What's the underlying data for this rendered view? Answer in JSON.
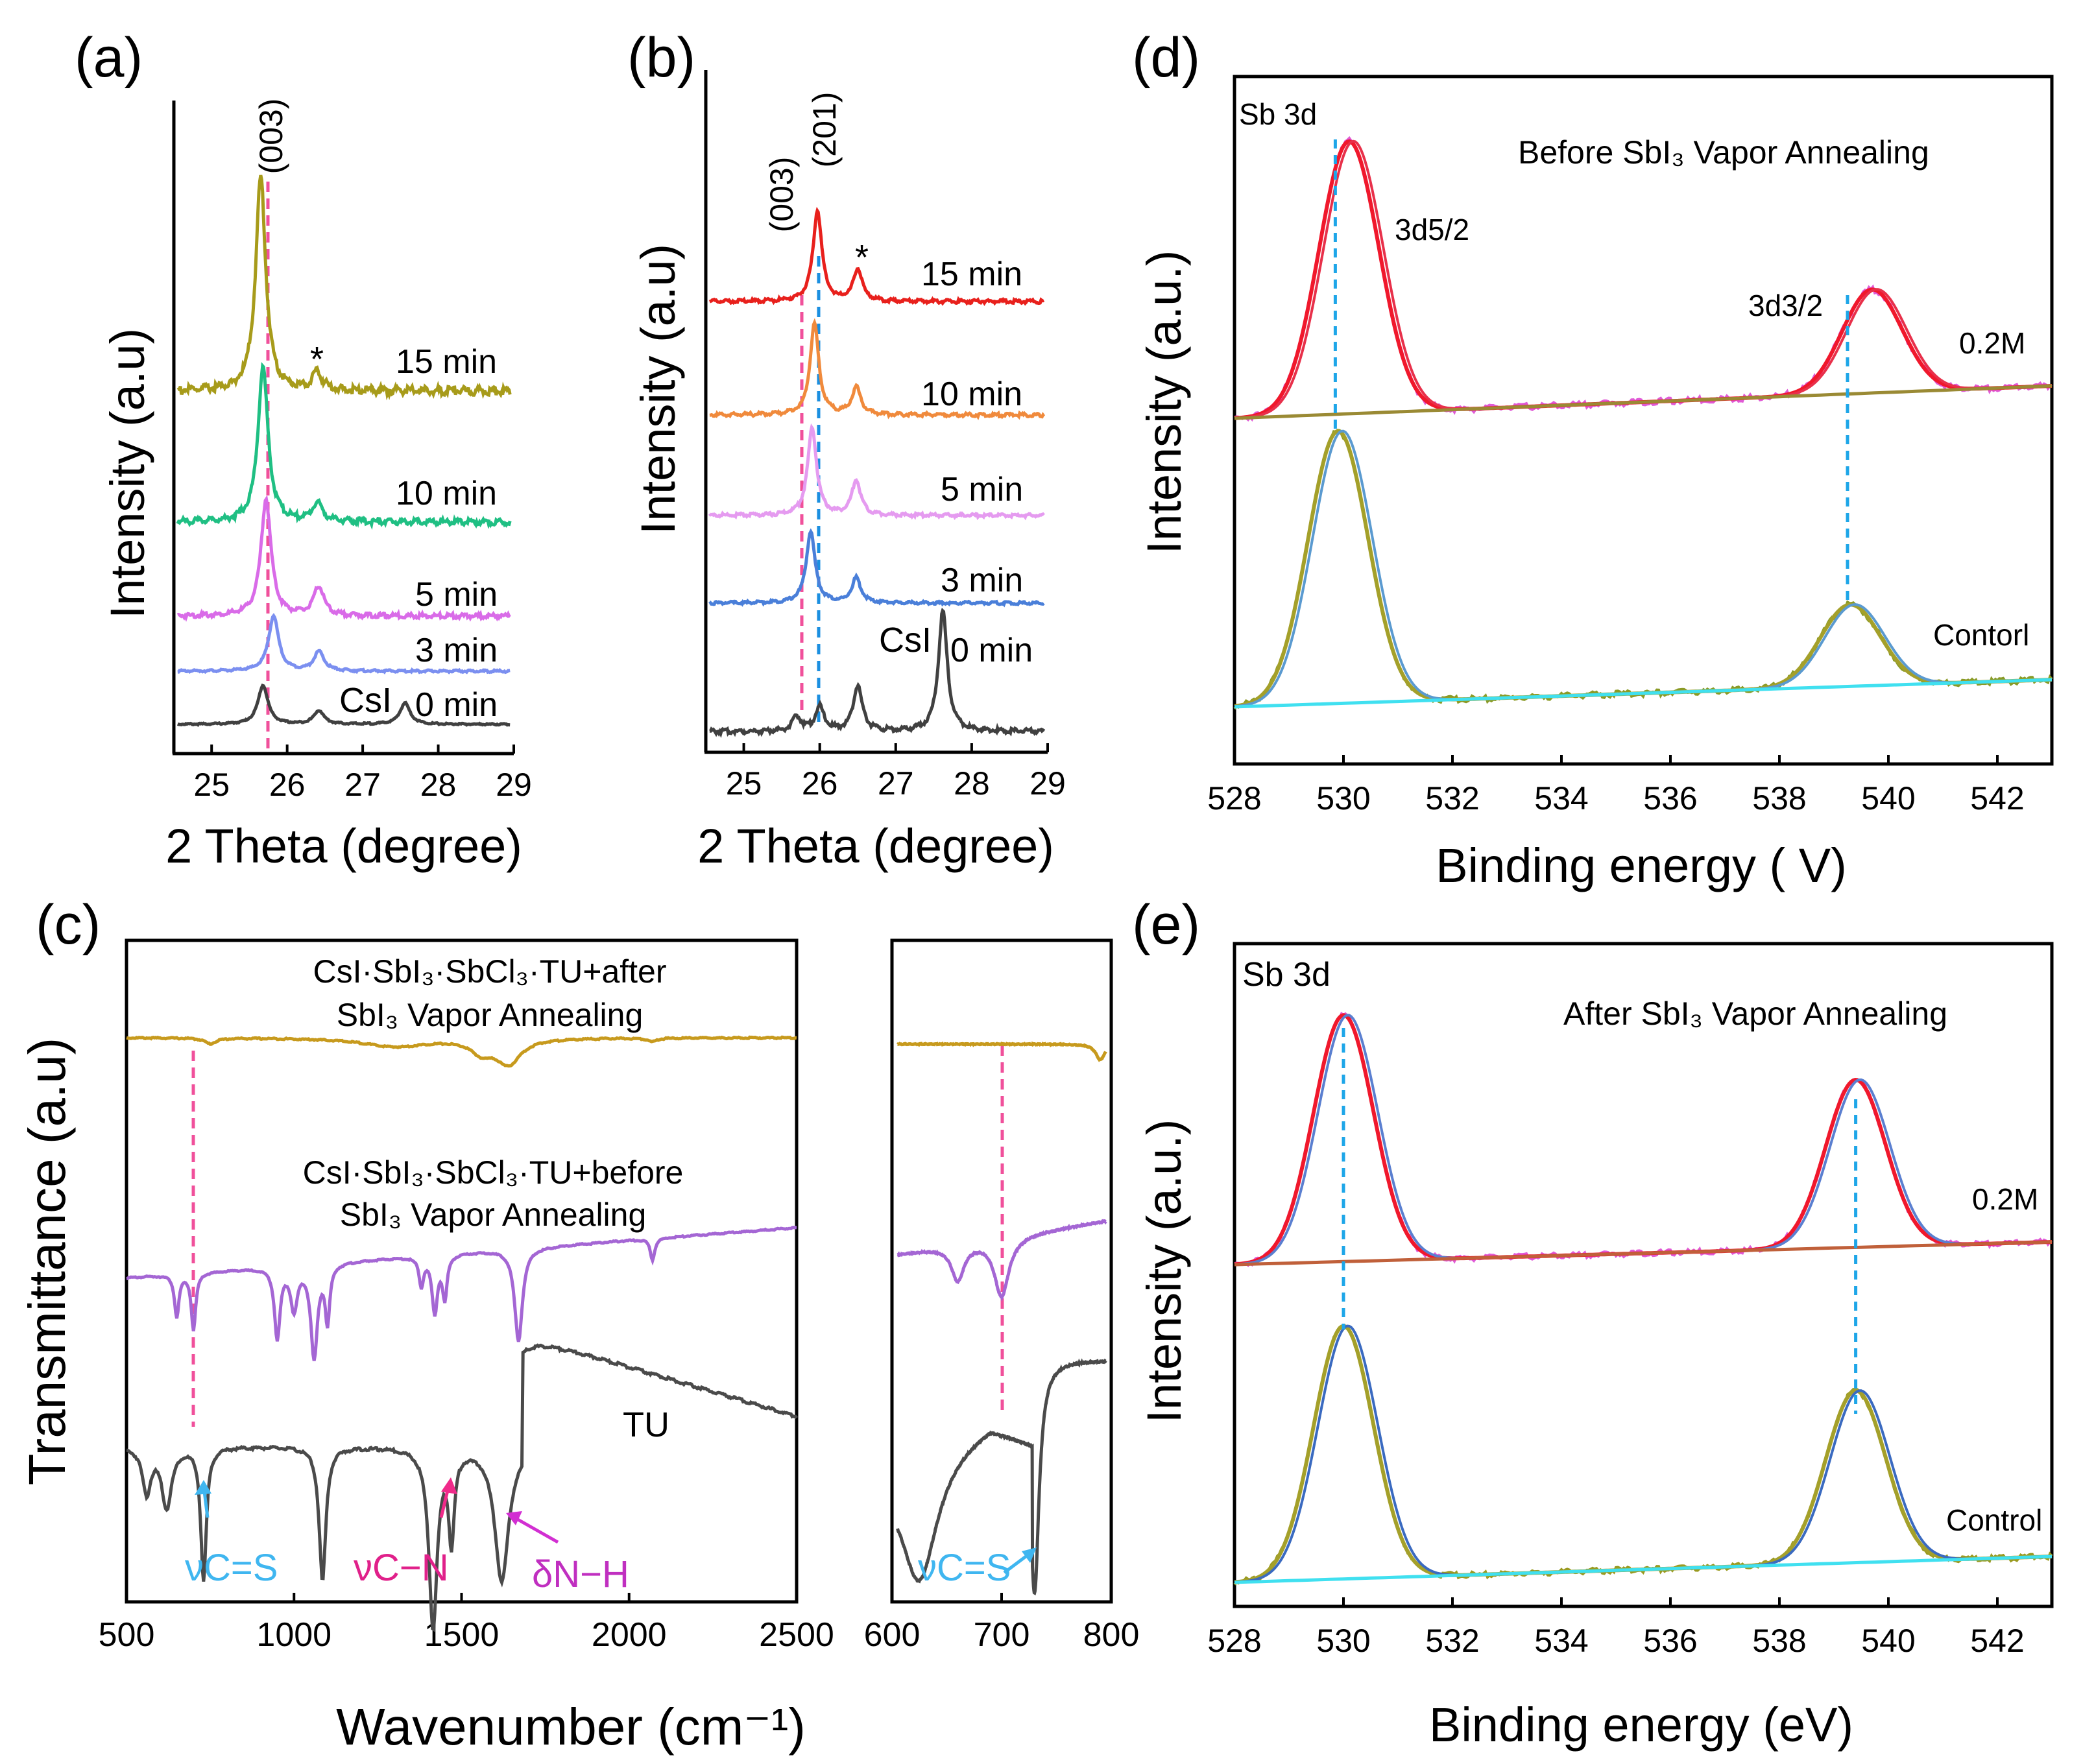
{
  "figure": {
    "panel_a": {
      "label": "(a)",
      "xlabel": "2 Theta (degree)",
      "ylabel": "Intensity (a.u)",
      "peak_label": "(003)",
      "impurity_mark": "*",
      "csi_label": "CsI"
    },
    "panel_b": {
      "label": "(b)",
      "xlabel": "2 Theta (degree)",
      "ylabel": "Intensity (a.u)",
      "peak_label_1": "(003)",
      "peak_label_2": "(201)",
      "impurity_mark": "*",
      "csi_label": "CsI"
    },
    "panel_c": {
      "label": "(c)",
      "xlabel": "Wavenumber (cm⁻¹)",
      "ylabel": "Transmittance (a.u)",
      "after_line1": "CsI·SbI₃·SbCl₃·TU+after",
      "after_line2": "SbI₃ Vapor  Annealing",
      "before_line1": "CsI·SbI₃·SbCl₃·TU+before",
      "before_line2": "SbI₃ Vapor  Annealing",
      "tu_label": "TU",
      "nu_cs": "νC=S",
      "nu_cn": "νC−N",
      "delta_nh": "δN−H",
      "nu_cs_inset": "νC=S"
    },
    "panel_d": {
      "label": "(d)",
      "xlabel": "Binding energy (   V)",
      "ylabel": "Intensity (a.u.)",
      "element": "Sb 3d",
      "title": "Before SbI₃ Vapor  Annealing",
      "peak1": "3d5/2",
      "peak2": "3d3/2",
      "top_label": "0.2M",
      "bottom_label": "Contorl"
    },
    "panel_e": {
      "label": "(e)",
      "xlabel": "Binding energy (eV)",
      "ylabel": "Intensity (a.u.)",
      "element": "Sb 3d",
      "title": "After SbI₃ Vapor  Annealing",
      "top_label": "0.2M",
      "bottom_label": "Control"
    }
  },
  "chart_data": [
    {
      "panel": "(a)",
      "type": "line",
      "xlabel": "2 Theta (degree)",
      "ylabel": "Intensity (a.u)",
      "xlim": [
        24.5,
        29
      ],
      "xticks": [
        25,
        26,
        27,
        28,
        29
      ],
      "series": [
        {
          "name": "0 min",
          "color": "#404040",
          "peaks": [
            [
              25.68,
              1.0
            ],
            [
              26.42,
              0.35
            ],
            [
              27.56,
              0.55
            ]
          ]
        },
        {
          "name": "3 min",
          "color": "#7b8ff0",
          "peaks": [
            [
              25.82,
              1.0
            ],
            [
              26.42,
              0.35
            ]
          ]
        },
        {
          "name": "5 min",
          "color": "#d96be8",
          "peaks": [
            [
              25.72,
              1.0
            ],
            [
              26.42,
              0.25
            ]
          ]
        },
        {
          "name": "10 min",
          "color": "#1fbf83",
          "peaks": [
            [
              25.68,
              1.0
            ],
            [
              26.4,
              0.12
            ]
          ]
        },
        {
          "name": "15 min",
          "color": "#a79b1a",
          "peaks": [
            [
              25.65,
              1.0
            ],
            [
              26.4,
              0.08
            ]
          ]
        }
      ]
    },
    {
      "panel": "(b)",
      "type": "line",
      "xlabel": "2 Theta (degree)",
      "ylabel": "Intensity (a.u)",
      "xlim": [
        24.5,
        29
      ],
      "xticks": [
        25,
        26,
        27,
        28,
        29
      ],
      "series": [
        {
          "name": "0 min",
          "color": "#404040",
          "peaks": [
            [
              25.7,
              0.12
            ],
            [
              26.0,
              0.2
            ],
            [
              26.5,
              0.38
            ],
            [
              27.62,
              1.0
            ]
          ]
        },
        {
          "name": "3 min",
          "color": "#4a7fd9",
          "peaks": [
            [
              25.88,
              1.0
            ],
            [
              26.48,
              0.35
            ]
          ]
        },
        {
          "name": "5 min",
          "color": "#e59bf0",
          "peaks": [
            [
              25.9,
              1.0
            ],
            [
              26.48,
              0.4
            ]
          ]
        },
        {
          "name": "10 min",
          "color": "#f08a3c",
          "peaks": [
            [
              25.93,
              1.0
            ],
            [
              26.48,
              0.3
            ]
          ]
        },
        {
          "name": "15 min",
          "color": "#e8201c",
          "peaks": [
            [
              25.97,
              1.0
            ],
            [
              26.5,
              0.35
            ]
          ]
        }
      ]
    },
    {
      "panel": "(c)",
      "type": "line",
      "xlabel": "Wavenumber (cm⁻¹)",
      "ylabel": "Transmittance (a.u)",
      "xlim": [
        500,
        2500
      ],
      "xticks": [
        500,
        1000,
        1500,
        2000,
        2500
      ],
      "series": [
        {
          "name": "after SbI₃ Vapor Annealing",
          "color": "#c79a1d"
        },
        {
          "name": "before SbI₃ Vapor Annealing",
          "color": "#a466d4"
        },
        {
          "name": "TU",
          "color": "#4a4a4a"
        }
      ],
      "annotations": [
        {
          "label": "νC=S",
          "x": 735
        },
        {
          "label": "νC−N",
          "x": 1470
        },
        {
          "label": "δN−H",
          "x": 1620
        }
      ]
    },
    {
      "panel": "(c) inset",
      "type": "line",
      "xlim": [
        600,
        800
      ],
      "xticks": [
        600,
        700,
        800
      ],
      "annotations": [
        {
          "label": "νC=S",
          "x": 730
        }
      ]
    },
    {
      "panel": "(d)",
      "type": "line",
      "title": "Before SbI₃ Vapor  Annealing",
      "xlabel": "Binding energy (   V)",
      "ylabel": "Intensity (a.u.)",
      "xlim": [
        528,
        543
      ],
      "xticks": [
        528,
        530,
        532,
        534,
        536,
        538,
        540,
        542
      ],
      "series": [
        {
          "name": "0.2M",
          "color": "#f0182c",
          "peaks": [
            [
              530.1,
              1.0
            ],
            [
              539.7,
              0.38
            ]
          ]
        },
        {
          "name": "Contorl",
          "color": "#a4a02a",
          "peaks": [
            [
              529.9,
              1.0
            ],
            [
              539.3,
              0.3
            ]
          ]
        }
      ],
      "reference_lines": [
        529.85,
        539.25
      ]
    },
    {
      "panel": "(e)",
      "type": "line",
      "title": "After SbI₃ Vapor  Annealing",
      "xlabel": "Binding energy (eV)",
      "ylabel": "Intensity (a.u.)",
      "xlim": [
        528,
        543
      ],
      "xticks": [
        528,
        530,
        532,
        534,
        536,
        538,
        540,
        542
      ],
      "series": [
        {
          "name": "0.2M",
          "color": "#f0182c",
          "peaks": [
            [
              530.0,
              1.0
            ],
            [
              539.4,
              0.68
            ]
          ]
        },
        {
          "name": "Control",
          "color": "#a4a02a",
          "peaks": [
            [
              530.0,
              1.0
            ],
            [
              539.4,
              0.68
            ]
          ]
        }
      ],
      "reference_lines": [
        530.0,
        539.4
      ]
    }
  ]
}
